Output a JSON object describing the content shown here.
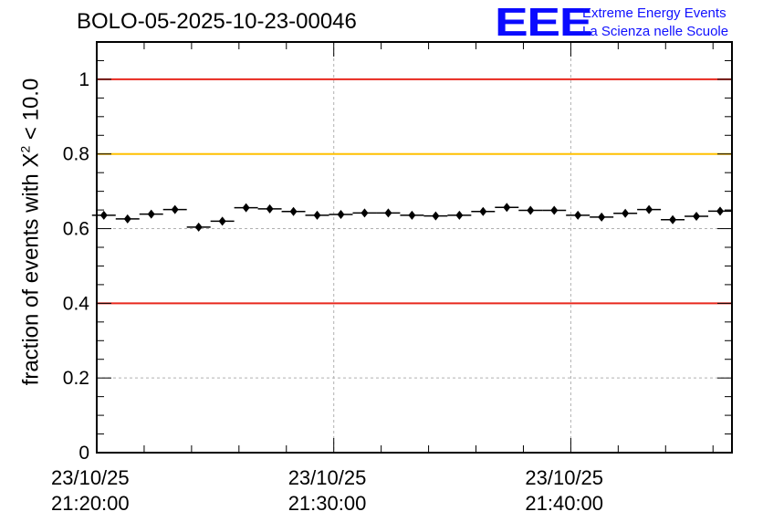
{
  "chart_data": {
    "type": "scatter",
    "title": "BOLO-05-2025-10-23-00046",
    "ylabel_prefix": "fraction of events with ",
    "ylabel_symbol": "X",
    "ylabel_exp": "2",
    "ylabel_suffix": " < 10.0",
    "ylim": [
      0,
      1.1
    ],
    "yticks": [
      0,
      0.2,
      0.4,
      0.6,
      0.8,
      1
    ],
    "ytick_labels": [
      "0",
      "0.2",
      "0.4",
      "0.6",
      "0.8",
      "1"
    ],
    "xlim_minutes": [
      0,
      26.8
    ],
    "xticks_minutes": [
      0,
      10,
      20
    ],
    "xtick_labels": [
      {
        "date": "23/10/25",
        "time": "21:20:00"
      },
      {
        "date": "23/10/25",
        "time": "21:30:00"
      },
      {
        "date": "23/10/25",
        "time": "21:40:00"
      }
    ],
    "reference_lines": [
      {
        "value": 1.0,
        "color": "#e8281e"
      },
      {
        "value": 0.8,
        "color": "#ffc000"
      },
      {
        "value": 0.4,
        "color": "#e8281e"
      }
    ],
    "bin_width_minutes": 1.0,
    "points": [
      {
        "x": 0.3,
        "y": 0.636
      },
      {
        "x": 1.3,
        "y": 0.626
      },
      {
        "x": 2.3,
        "y": 0.639
      },
      {
        "x": 3.3,
        "y": 0.651
      },
      {
        "x": 4.3,
        "y": 0.604
      },
      {
        "x": 5.3,
        "y": 0.62
      },
      {
        "x": 6.3,
        "y": 0.656
      },
      {
        "x": 7.3,
        "y": 0.653
      },
      {
        "x": 8.3,
        "y": 0.646
      },
      {
        "x": 9.3,
        "y": 0.636
      },
      {
        "x": 10.3,
        "y": 0.638
      },
      {
        "x": 11.3,
        "y": 0.642
      },
      {
        "x": 12.3,
        "y": 0.642
      },
      {
        "x": 13.3,
        "y": 0.636
      },
      {
        "x": 14.3,
        "y": 0.634
      },
      {
        "x": 15.3,
        "y": 0.636
      },
      {
        "x": 16.3,
        "y": 0.646
      },
      {
        "x": 17.3,
        "y": 0.657
      },
      {
        "x": 18.3,
        "y": 0.649
      },
      {
        "x": 19.3,
        "y": 0.649
      },
      {
        "x": 20.3,
        "y": 0.636
      },
      {
        "x": 21.3,
        "y": 0.631
      },
      {
        "x": 22.3,
        "y": 0.641
      },
      {
        "x": 23.3,
        "y": 0.651
      },
      {
        "x": 24.3,
        "y": 0.624
      },
      {
        "x": 25.3,
        "y": 0.633
      },
      {
        "x": 26.3,
        "y": 0.647
      }
    ],
    "error": 0.008,
    "marker_color": "#000000"
  },
  "logo": {
    "mark": "EEE",
    "line1": "Extreme Energy Events",
    "line2": "La Scienza nelle Scuole",
    "color": "#0a0aff"
  }
}
